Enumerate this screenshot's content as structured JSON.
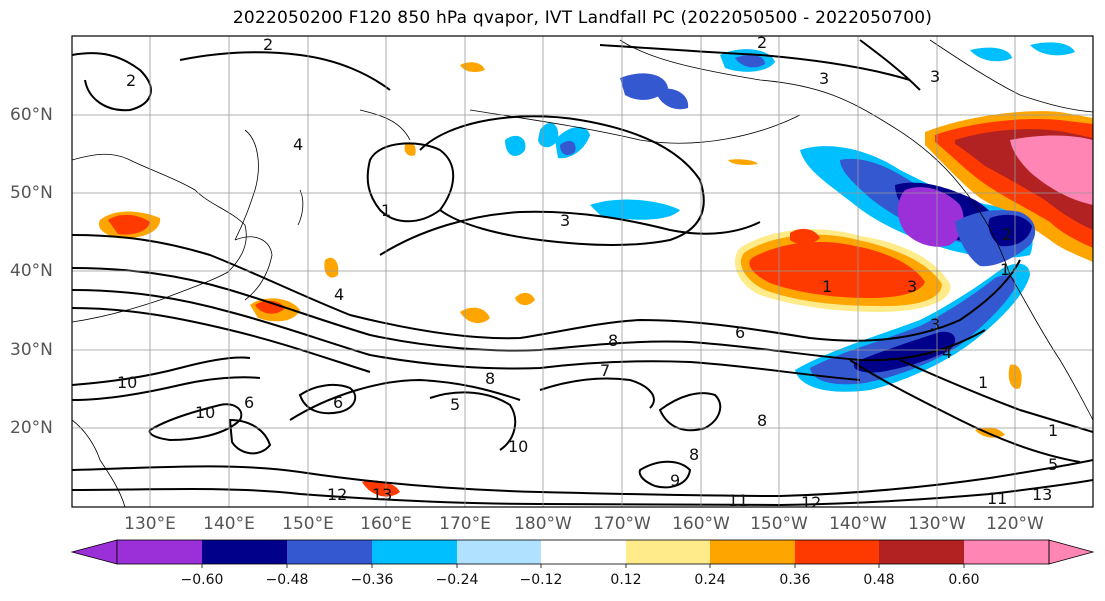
{
  "title": "2022050200 F120 850 hPa qvapor, IVT Landfall PC (2022050500 - 2022050700)",
  "lat_labels": [
    "60°N",
    "50°N",
    "40°N",
    "30°N",
    "20°N"
  ],
  "lon_labels": [
    "130°E",
    "140°E",
    "150°E",
    "160°E",
    "170°E",
    "180°W",
    "170°W",
    "160°W",
    "150°W",
    "140°W",
    "130°W",
    "120°W"
  ],
  "colorbar": {
    "ticks": [
      "−0.60",
      "−0.48",
      "−0.36",
      "−0.24",
      "−0.12",
      "0.12",
      "0.24",
      "0.36",
      "0.48",
      "0.60"
    ],
    "colors": [
      "#9b30d9",
      "#00008b",
      "#3458d0",
      "#00bfff",
      "#b0e2ff",
      "#ffffff",
      "#ffeb8a",
      "#ffa500",
      "#ff3a00",
      "#b22222",
      "#ff85b5"
    ]
  },
  "contour_labels": [
    "2",
    "2",
    "2",
    "3",
    "3",
    "4",
    "1",
    "3",
    "1",
    "3",
    "4",
    "6",
    "8",
    "7",
    "8",
    "6",
    "5",
    "10",
    "10",
    "10",
    "6",
    "8",
    "8",
    "9",
    "12",
    "13",
    "11",
    "12",
    "11",
    "1",
    "1",
    "1",
    "2",
    "3",
    "4",
    "5",
    "13"
  ]
}
